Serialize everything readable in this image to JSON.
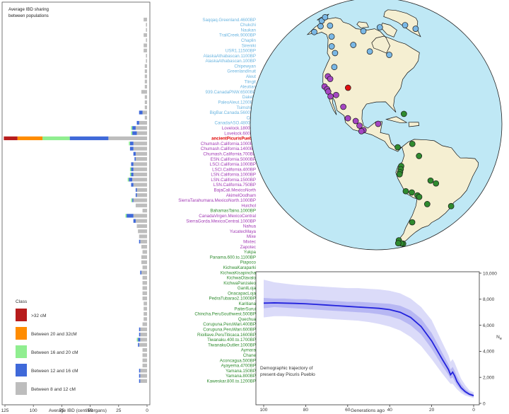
{
  "chart_data": [
    {
      "type": "bar",
      "title": "Average IBD sharing\nbetween populations",
      "xlabel": "Average IBD (centiMorgans)",
      "xlim": [
        125,
        0
      ],
      "xticks": [
        125,
        100,
        75,
        50,
        25,
        0
      ],
      "orientation": "horizontal",
      "stacked": true,
      "legend": {
        "title": "Class",
        "position": "bottom-left",
        "entries": [
          {
            "label": ">32 cM",
            "color": "#b71c1c"
          },
          {
            "label": "Between 20 and 32cM",
            "color": "#ff8c00"
          },
          {
            "label": "Between 16 and 20 cM",
            "color": "#90ee90"
          },
          {
            "label": "Between 12 and 16 cM",
            "color": "#3f69d9"
          },
          {
            "label": "Between 8 and 12 cM",
            "color": "#bdbdbd"
          }
        ]
      },
      "categories": [
        "Saqqaq.Greenland.4600BP",
        "Chukchi",
        "Naukan",
        "TrailCreek.9000BP",
        "Chaplin",
        "Sireniki",
        "USR1.11500BP",
        "AlaskaAthabascan.1100BP",
        "AlaskaAthabascan.100BP",
        "Chipewyan",
        "GreenlandInuit",
        "Aleut",
        "Tlingit",
        "Aleutian",
        "939.CanadaPNW.6500BP",
        "Dakelh",
        "PaleoAleut.1200BP",
        "Tsimshian",
        "BigBar.Canada.5600BP",
        "Cree",
        "CanadaASO.4800BP",
        "Lovelock.1800BP",
        "Lovelock.600BP",
        "ancientPicurisPueblo",
        "Chumash.California.1000BP",
        "Chumash.California.1400BP",
        "Chumash.California.700BP",
        "ESN.California.5000BP",
        "LSCI.California.1000BP",
        "LSCI.California.400BP",
        "LSN.California.1000BP",
        "LSN.California.1500BP",
        "LSN.California.750BP",
        "BajaCali.MexicoNorth",
        "AkimelOodham",
        "SierraTarahumara.MexicoNorth.1000BP",
        "Huichol",
        "BahamasTaino.1000BP",
        "CanadaVirgen.MexicoCentral",
        "SierraGorda.MexicoCentral.1000BP",
        "Nahua",
        "YucatecMaya",
        "Mixe",
        "Mixtec",
        "Zapotec",
        "Yukpa",
        "Panama.600.to.1100BP",
        "Piapoco",
        "KichwaKaraparki",
        "KichwaKisapincha",
        "KichwaOtavalo",
        "KichwaPanzaleo",
        "GanilLoja",
        "OnacapacLoja",
        "PedraTubarao2.1000BP",
        "Karitiana",
        "PaiterSurui",
        "Chincha.PeruSouthwest.500BP",
        "Quechua",
        "Corupuna.PeruWari.400BP",
        "Corupuna.PeruWari.600BP",
        "Rioillave.PeruTiticaca.1600BP",
        "Tiwanaku.400.to.1700BP",
        "TiwanakuOutlier.1000BP",
        "Aymara",
        "Chane",
        "Aconcagua.500BP",
        "Ayayema.4700BP",
        "Yamana.150BP",
        "Yamana.800BP",
        "Kaweskar.800.to.1200BP"
      ],
      "category_colors": {
        "north_america_arctic": "#6bb5e0",
        "california_mexico": "#a23ab5",
        "central_south_america": "#2e8b2e",
        "highlight": "#e00000"
      },
      "category_groups": [
        "north_america_arctic",
        "north_america_arctic",
        "north_america_arctic",
        "north_america_arctic",
        "north_america_arctic",
        "north_america_arctic",
        "north_america_arctic",
        "north_america_arctic",
        "north_america_arctic",
        "north_america_arctic",
        "north_america_arctic",
        "north_america_arctic",
        "north_america_arctic",
        "north_america_arctic",
        "north_america_arctic",
        "north_america_arctic",
        "north_america_arctic",
        "north_america_arctic",
        "north_america_arctic",
        "north_america_arctic",
        "north_america_arctic",
        "california_mexico",
        "california_mexico",
        "highlight",
        "california_mexico",
        "california_mexico",
        "california_mexico",
        "california_mexico",
        "california_mexico",
        "california_mexico",
        "california_mexico",
        "california_mexico",
        "california_mexico",
        "california_mexico",
        "california_mexico",
        "california_mexico",
        "california_mexico",
        "central_south_america",
        "california_mexico",
        "california_mexico",
        "california_mexico",
        "california_mexico",
        "california_mexico",
        "california_mexico",
        "california_mexico",
        "central_south_america",
        "central_south_america",
        "central_south_america",
        "central_south_america",
        "central_south_america",
        "central_south_america",
        "central_south_america",
        "central_south_america",
        "central_south_america",
        "central_south_america",
        "central_south_america",
        "central_south_america",
        "central_south_america",
        "central_south_america",
        "central_south_america",
        "central_south_america",
        "central_south_america",
        "central_south_america",
        "central_south_america",
        "central_south_america",
        "central_south_america",
        "central_south_america",
        "central_south_america",
        "central_south_america",
        "central_south_america",
        "central_south_america"
      ],
      "series": [
        {
          "name": ">32 cM",
          "values": [
            0,
            0,
            0,
            0,
            0,
            0,
            0,
            0,
            0,
            0,
            0,
            0,
            0,
            0,
            0,
            0,
            0,
            0,
            0,
            0,
            0,
            0,
            0,
            12,
            0,
            0,
            0,
            0,
            0,
            0,
            0,
            0,
            0,
            0,
            0,
            0,
            0,
            0,
            0,
            0,
            0,
            0,
            0,
            0,
            0,
            0,
            0,
            0,
            0,
            0,
            0,
            0,
            0,
            0,
            0,
            0,
            0,
            0,
            0,
            0,
            0,
            0,
            0,
            0,
            0,
            0,
            0,
            0,
            0,
            0,
            0
          ]
        },
        {
          "name": "Between 20 and 32cM",
          "values": [
            0,
            0,
            0,
            0,
            0,
            0,
            0,
            0,
            0,
            0,
            0,
            0,
            0,
            0,
            0,
            0,
            0,
            0,
            0,
            0,
            0,
            0,
            0,
            22,
            0,
            0,
            0,
            0,
            0,
            0,
            0,
            0,
            0,
            0,
            0,
            0,
            0,
            0,
            0,
            0,
            0,
            0,
            0,
            0,
            0,
            0,
            0,
            0,
            0,
            0,
            0,
            0,
            0,
            0,
            0,
            0,
            0,
            0,
            0,
            0,
            0,
            0,
            0,
            0,
            0,
            0,
            0,
            0,
            0,
            0,
            0
          ]
        },
        {
          "name": "Between 16 and 20 cM",
          "values": [
            0,
            0,
            0,
            0,
            0,
            0,
            0,
            0,
            0,
            0,
            0,
            0,
            0,
            0,
            0,
            0,
            0,
            0,
            0,
            0,
            0,
            1,
            1,
            24,
            1,
            0,
            0,
            0,
            0,
            1,
            1,
            1,
            0,
            0,
            0,
            1,
            0,
            0,
            1,
            0,
            0,
            0,
            0,
            0,
            0,
            0,
            0,
            0,
            0,
            0,
            0,
            0,
            0,
            0,
            0,
            0,
            0,
            0,
            0,
            0,
            0,
            0,
            1,
            0,
            0,
            0,
            0,
            0,
            0,
            0,
            0
          ]
        },
        {
          "name": "Between 12 and 16 cM",
          "values": [
            0,
            0,
            0,
            0,
            0,
            0,
            0,
            0,
            0,
            0,
            0,
            0,
            0,
            0,
            0,
            0,
            0,
            0,
            3,
            0,
            2,
            3,
            4,
            34,
            3,
            3,
            2,
            1,
            2,
            2,
            2,
            3,
            2,
            1,
            1,
            1,
            0,
            0,
            6,
            2,
            0,
            0,
            0,
            1,
            0,
            0,
            0,
            0,
            0,
            1,
            0,
            0,
            0,
            0,
            0,
            0,
            0,
            0,
            0,
            0,
            1,
            1,
            2,
            1,
            0,
            0,
            0,
            0,
            1,
            1,
            1
          ]
        },
        {
          "name": "Between 8 and 12 cM",
          "values": [
            3,
            1,
            1,
            3,
            1,
            3,
            3,
            1,
            1,
            2,
            2,
            2,
            2,
            2,
            5,
            2,
            2,
            2,
            4,
            2,
            7,
            10,
            9,
            34,
            12,
            12,
            10,
            10,
            12,
            12,
            12,
            13,
            12,
            9,
            9,
            12,
            10,
            4,
            12,
            10,
            9,
            8,
            7,
            6,
            5,
            4,
            5,
            5,
            4,
            5,
            4,
            4,
            4,
            4,
            4,
            3,
            3,
            3,
            3,
            4,
            6,
            6,
            6,
            7,
            4,
            4,
            4,
            4,
            6,
            6,
            6
          ]
        }
      ]
    },
    {
      "type": "map",
      "projection": "orthographic",
      "center_lon": -90,
      "center_lat": 20,
      "land_color": "#f5efd2",
      "ocean_color": "#bfe8f5",
      "points": [
        {
          "lon": -150,
          "lat": 65,
          "group": "north_america_arctic"
        },
        {
          "lon": -160,
          "lat": 62,
          "group": "north_america_arctic"
        },
        {
          "lon": -170,
          "lat": 64,
          "group": "north_america_arctic"
        },
        {
          "lon": -175,
          "lat": 66,
          "group": "north_america_arctic"
        },
        {
          "lon": -158,
          "lat": 58,
          "group": "north_america_arctic"
        },
        {
          "lon": -135,
          "lat": 60,
          "group": "north_america_arctic"
        },
        {
          "lon": -128,
          "lat": 55,
          "group": "north_america_arctic"
        },
        {
          "lon": -122,
          "lat": 52,
          "group": "north_america_arctic"
        },
        {
          "lon": -110,
          "lat": 58,
          "group": "north_america_arctic"
        },
        {
          "lon": -95,
          "lat": 55,
          "group": "north_america_arctic"
        },
        {
          "lon": -80,
          "lat": 53,
          "group": "north_america_arctic"
        },
        {
          "lon": -50,
          "lat": 69,
          "group": "north_america_arctic"
        },
        {
          "lon": -42,
          "lat": 65,
          "group": "north_america_arctic"
        },
        {
          "lon": -85,
          "lat": 70,
          "group": "north_america_arctic"
        },
        {
          "lon": -105,
          "lat": 67,
          "group": "north_america_arctic"
        },
        {
          "lon": -118,
          "lat": 45,
          "group": "north_america_arctic"
        },
        {
          "lon": -106,
          "lat": 36,
          "group": "highlight"
        },
        {
          "lon": -120,
          "lat": 40,
          "group": "california_mexico"
        },
        {
          "lon": -118,
          "lat": 39,
          "group": "california_mexico"
        },
        {
          "lon": -120,
          "lat": 35,
          "group": "california_mexico"
        },
        {
          "lon": -118,
          "lat": 34,
          "group": "california_mexico"
        },
        {
          "lon": -117,
          "lat": 33,
          "group": "california_mexico"
        },
        {
          "lon": -115,
          "lat": 31,
          "group": "california_mexico"
        },
        {
          "lon": -112,
          "lat": 32,
          "group": "california_mexico"
        },
        {
          "lon": -107,
          "lat": 27,
          "group": "california_mexico"
        },
        {
          "lon": -104,
          "lat": 22,
          "group": "california_mexico"
        },
        {
          "lon": -100,
          "lat": 21,
          "group": "california_mexico"
        },
        {
          "lon": -98,
          "lat": 19,
          "group": "california_mexico"
        },
        {
          "lon": -96,
          "lat": 17,
          "group": "california_mexico"
        },
        {
          "lon": -97,
          "lat": 16.5,
          "group": "california_mexico"
        },
        {
          "lon": -89,
          "lat": 20,
          "group": "california_mexico"
        },
        {
          "lon": -76,
          "lat": 24,
          "group": "central_south_america"
        },
        {
          "lon": -80,
          "lat": 9,
          "group": "central_south_america"
        },
        {
          "lon": -73,
          "lat": 10,
          "group": "central_south_america"
        },
        {
          "lon": -70,
          "lat": 4,
          "group": "central_south_america"
        },
        {
          "lon": -78.5,
          "lat": 0,
          "group": "central_south_america"
        },
        {
          "lon": -78.7,
          "lat": -1.5,
          "group": "central_south_america"
        },
        {
          "lon": -79,
          "lat": -3,
          "group": "central_south_america"
        },
        {
          "lon": -79.2,
          "lat": -4,
          "group": "central_south_america"
        },
        {
          "lon": -64,
          "lat": -9,
          "group": "central_south_america"
        },
        {
          "lon": -61,
          "lat": -11,
          "group": "central_south_america"
        },
        {
          "lon": -76,
          "lat": -13,
          "group": "central_south_america"
        },
        {
          "lon": -73,
          "lat": -14,
          "group": "central_south_america"
        },
        {
          "lon": -70,
          "lat": -16,
          "group": "central_south_america"
        },
        {
          "lon": -69,
          "lat": -17,
          "group": "central_south_america"
        },
        {
          "lon": -48,
          "lat": -27,
          "group": "central_south_america"
        },
        {
          "lon": -64,
          "lat": -22,
          "group": "central_south_america"
        },
        {
          "lon": -70,
          "lat": -33,
          "group": "central_south_america"
        },
        {
          "lon": -74,
          "lat": -49,
          "group": "central_south_america"
        },
        {
          "lon": -68,
          "lat": -55,
          "group": "central_south_america"
        },
        {
          "lon": -70,
          "lat": -54,
          "group": "central_south_america"
        },
        {
          "lon": -73,
          "lat": -53,
          "group": "central_south_america"
        }
      ]
    },
    {
      "type": "area",
      "annotation": "Demographic trajectory of\npresent-day Picuris Pueblo",
      "xlabel": "Generations ago",
      "ylabel": "N_e",
      "xlim": [
        100,
        0
      ],
      "ylim": [
        0,
        10000
      ],
      "xticks": [
        100,
        80,
        60,
        40,
        20,
        0
      ],
      "yticks": [
        0,
        2000,
        4000,
        6000,
        8000,
        10000
      ],
      "ytick_labels": [
        "0",
        "2,000",
        "4,000",
        "6,000",
        "8,000",
        "10,000"
      ],
      "line_color": "#2222dd",
      "band_color": "#9999ee",
      "x": [
        100,
        95,
        90,
        85,
        80,
        75,
        70,
        65,
        60,
        55,
        50,
        45,
        40,
        35,
        30,
        25,
        20,
        15,
        12,
        11,
        10,
        9,
        8,
        6,
        4,
        2,
        0
      ],
      "y": [
        7700,
        7720,
        7700,
        7680,
        7650,
        7600,
        7550,
        7500,
        7450,
        7400,
        7350,
        7300,
        7200,
        7000,
        6600,
        5900,
        4800,
        3400,
        2600,
        2200,
        2400,
        2100,
        1700,
        1200,
        900,
        700,
        600
      ],
      "inner_low": [
        7300,
        7400,
        7350,
        7300,
        7250,
        7200,
        7150,
        7100,
        7050,
        7000,
        6950,
        6850,
        6700,
        6450,
        6000,
        5300,
        4200,
        2900,
        2200,
        1900,
        2000,
        1700,
        1400,
        1000,
        750,
        600,
        500
      ],
      "inner_high": [
        8100,
        8050,
        8050,
        8000,
        8000,
        7950,
        7900,
        7850,
        7800,
        7800,
        7750,
        7700,
        7650,
        7500,
        7150,
        6500,
        5400,
        3900,
        3000,
        2600,
        2800,
        2500,
        2100,
        1500,
        1100,
        850,
        700
      ],
      "outer_low": [
        6600,
        6700,
        6700,
        6650,
        6600,
        6550,
        6500,
        6450,
        6400,
        6350,
        6250,
        6100,
        5900,
        5600,
        5100,
        4400,
        3400,
        2300,
        1700,
        1500,
        1500,
        1300,
        1100,
        800,
        600,
        500,
        400
      ],
      "outer_high": [
        9500,
        9300,
        9200,
        9100,
        9050,
        9000,
        8950,
        8900,
        8850,
        8850,
        8800,
        8750,
        8650,
        8450,
        8050,
        7400,
        6400,
        4700,
        3700,
        3200,
        3400,
        3100,
        2700,
        1900,
        1400,
        1000,
        850
      ]
    }
  ]
}
